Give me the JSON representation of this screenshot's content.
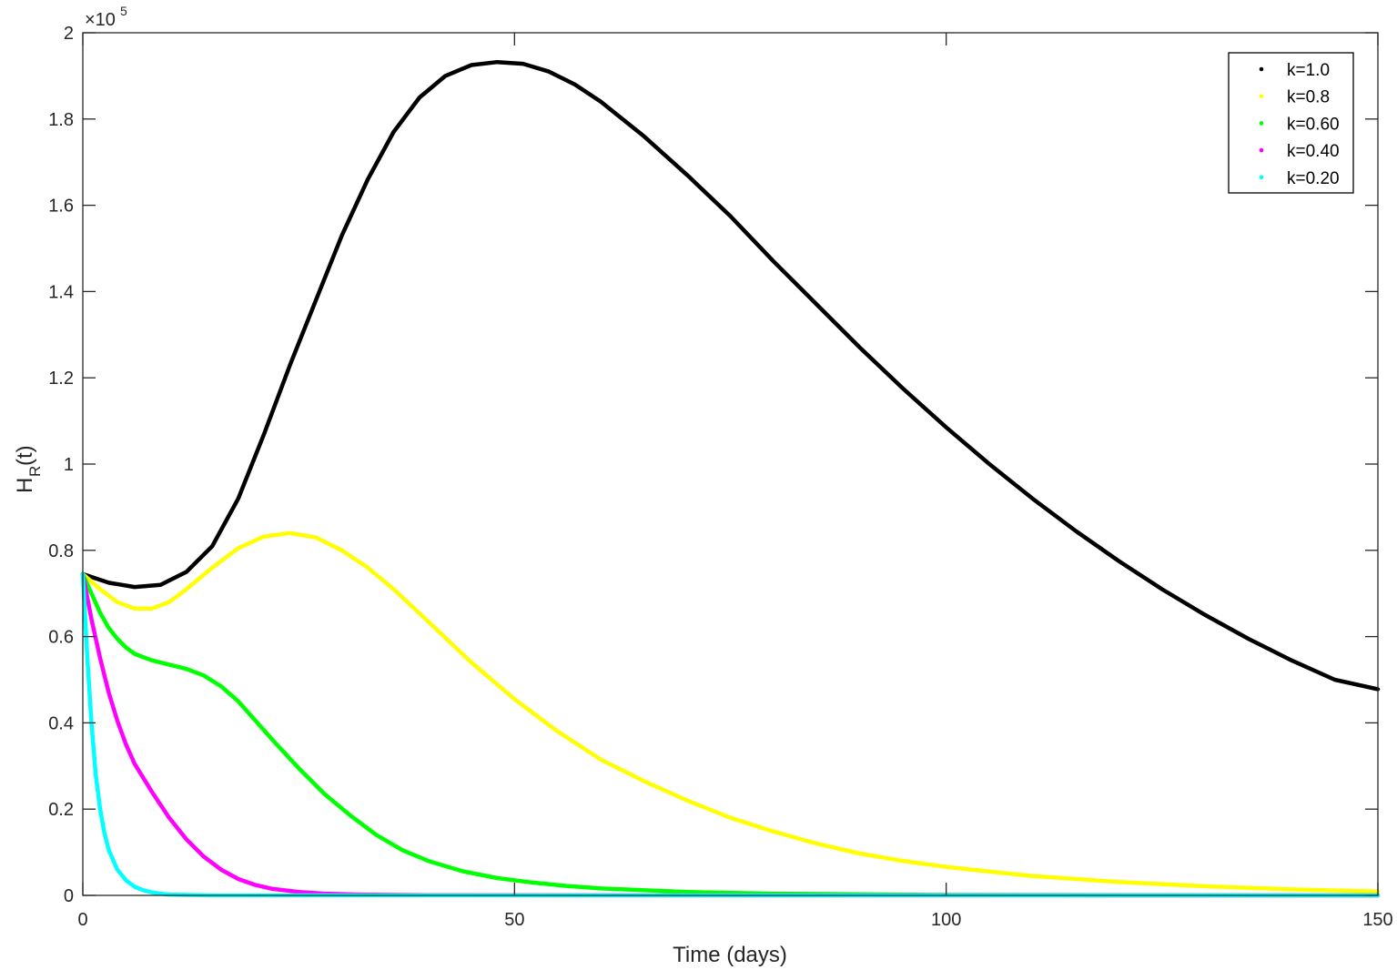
{
  "chart_data": {
    "type": "line",
    "xlabel": "Time (days)",
    "ylabel_main": "H",
    "ylabel_sub": "R",
    "ylabel_tail": "(t)",
    "exponent_label": "×10",
    "exponent_power": "5",
    "xlim": [
      0,
      150
    ],
    "ylim": [
      0,
      2
    ],
    "x_ticks": [
      0,
      50,
      100,
      150
    ],
    "y_ticks": [
      0,
      0.2,
      0.4,
      0.6,
      0.8,
      1,
      1.2,
      1.4,
      1.6,
      1.8,
      2
    ],
    "legend_position": "top-right",
    "grid": false,
    "series": [
      {
        "name": "k=1.0",
        "color": "#000000",
        "points": [
          [
            0,
            0.745
          ],
          [
            3,
            0.725
          ],
          [
            6,
            0.715
          ],
          [
            9,
            0.72
          ],
          [
            12,
            0.75
          ],
          [
            15,
            0.81
          ],
          [
            18,
            0.92
          ],
          [
            21,
            1.07
          ],
          [
            24,
            1.23
          ],
          [
            27,
            1.38
          ],
          [
            30,
            1.53
          ],
          [
            33,
            1.66
          ],
          [
            36,
            1.77
          ],
          [
            39,
            1.85
          ],
          [
            42,
            1.9
          ],
          [
            45,
            1.925
          ],
          [
            48,
            1.932
          ],
          [
            51,
            1.928
          ],
          [
            54,
            1.91
          ],
          [
            57,
            1.88
          ],
          [
            60,
            1.84
          ],
          [
            65,
            1.76
          ],
          [
            70,
            1.67
          ],
          [
            75,
            1.575
          ],
          [
            80,
            1.47
          ],
          [
            85,
            1.37
          ],
          [
            90,
            1.27
          ],
          [
            95,
            1.175
          ],
          [
            100,
            1.085
          ],
          [
            105,
            1.0
          ],
          [
            110,
            0.92
          ],
          [
            115,
            0.845
          ],
          [
            120,
            0.775
          ],
          [
            125,
            0.71
          ],
          [
            130,
            0.65
          ],
          [
            135,
            0.595
          ],
          [
            140,
            0.545
          ],
          [
            145,
            0.5
          ],
          [
            150,
            0.478
          ]
        ]
      },
      {
        "name": "k=0.8",
        "color": "#ffff00",
        "points": [
          [
            0,
            0.745
          ],
          [
            2,
            0.71
          ],
          [
            4,
            0.68
          ],
          [
            6,
            0.665
          ],
          [
            8,
            0.665
          ],
          [
            10,
            0.68
          ],
          [
            12,
            0.71
          ],
          [
            15,
            0.76
          ],
          [
            18,
            0.805
          ],
          [
            21,
            0.832
          ],
          [
            24,
            0.84
          ],
          [
            27,
            0.83
          ],
          [
            30,
            0.8
          ],
          [
            33,
            0.76
          ],
          [
            36,
            0.71
          ],
          [
            40,
            0.635
          ],
          [
            45,
            0.54
          ],
          [
            50,
            0.455
          ],
          [
            55,
            0.38
          ],
          [
            60,
            0.315
          ],
          [
            65,
            0.265
          ],
          [
            70,
            0.22
          ],
          [
            75,
            0.18
          ],
          [
            80,
            0.148
          ],
          [
            85,
            0.12
          ],
          [
            90,
            0.097
          ],
          [
            95,
            0.08
          ],
          [
            100,
            0.066
          ],
          [
            110,
            0.045
          ],
          [
            120,
            0.031
          ],
          [
            130,
            0.021
          ],
          [
            140,
            0.014
          ],
          [
            150,
            0.009
          ]
        ]
      },
      {
        "name": "k=0.60",
        "color": "#00ff00",
        "points": [
          [
            0,
            0.745
          ],
          [
            1,
            0.7
          ],
          [
            2,
            0.655
          ],
          [
            3,
            0.62
          ],
          [
            4,
            0.595
          ],
          [
            5,
            0.575
          ],
          [
            6,
            0.56
          ],
          [
            8,
            0.545
          ],
          [
            10,
            0.535
          ],
          [
            12,
            0.525
          ],
          [
            14,
            0.51
          ],
          [
            16,
            0.485
          ],
          [
            18,
            0.45
          ],
          [
            20,
            0.405
          ],
          [
            22,
            0.36
          ],
          [
            25,
            0.295
          ],
          [
            28,
            0.235
          ],
          [
            31,
            0.185
          ],
          [
            34,
            0.14
          ],
          [
            37,
            0.105
          ],
          [
            40,
            0.08
          ],
          [
            44,
            0.056
          ],
          [
            48,
            0.04
          ],
          [
            52,
            0.03
          ],
          [
            56,
            0.022
          ],
          [
            60,
            0.016
          ],
          [
            70,
            0.008
          ],
          [
            80,
            0.004
          ],
          [
            100,
            0.001
          ],
          [
            150,
            0.0
          ]
        ]
      },
      {
        "name": "k=0.40",
        "color": "#ff00ff",
        "points": [
          [
            0,
            0.745
          ],
          [
            1,
            0.64
          ],
          [
            2,
            0.55
          ],
          [
            3,
            0.47
          ],
          [
            4,
            0.405
          ],
          [
            5,
            0.35
          ],
          [
            6,
            0.305
          ],
          [
            8,
            0.24
          ],
          [
            10,
            0.18
          ],
          [
            12,
            0.13
          ],
          [
            14,
            0.09
          ],
          [
            16,
            0.06
          ],
          [
            18,
            0.038
          ],
          [
            20,
            0.024
          ],
          [
            22,
            0.015
          ],
          [
            25,
            0.008
          ],
          [
            28,
            0.004
          ],
          [
            32,
            0.002
          ],
          [
            40,
            0.0005
          ],
          [
            150,
            0.0
          ]
        ]
      },
      {
        "name": "k=0.20",
        "color": "#00ffff",
        "points": [
          [
            0,
            0.745
          ],
          [
            0.5,
            0.56
          ],
          [
            1,
            0.4
          ],
          [
            1.5,
            0.28
          ],
          [
            2,
            0.2
          ],
          [
            2.5,
            0.145
          ],
          [
            3,
            0.105
          ],
          [
            4,
            0.06
          ],
          [
            5,
            0.035
          ],
          [
            6,
            0.02
          ],
          [
            7,
            0.012
          ],
          [
            8,
            0.007
          ],
          [
            9,
            0.004
          ],
          [
            10,
            0.002
          ],
          [
            12,
            0.001
          ],
          [
            15,
            0.0
          ],
          [
            150,
            0.0
          ]
        ]
      }
    ]
  }
}
